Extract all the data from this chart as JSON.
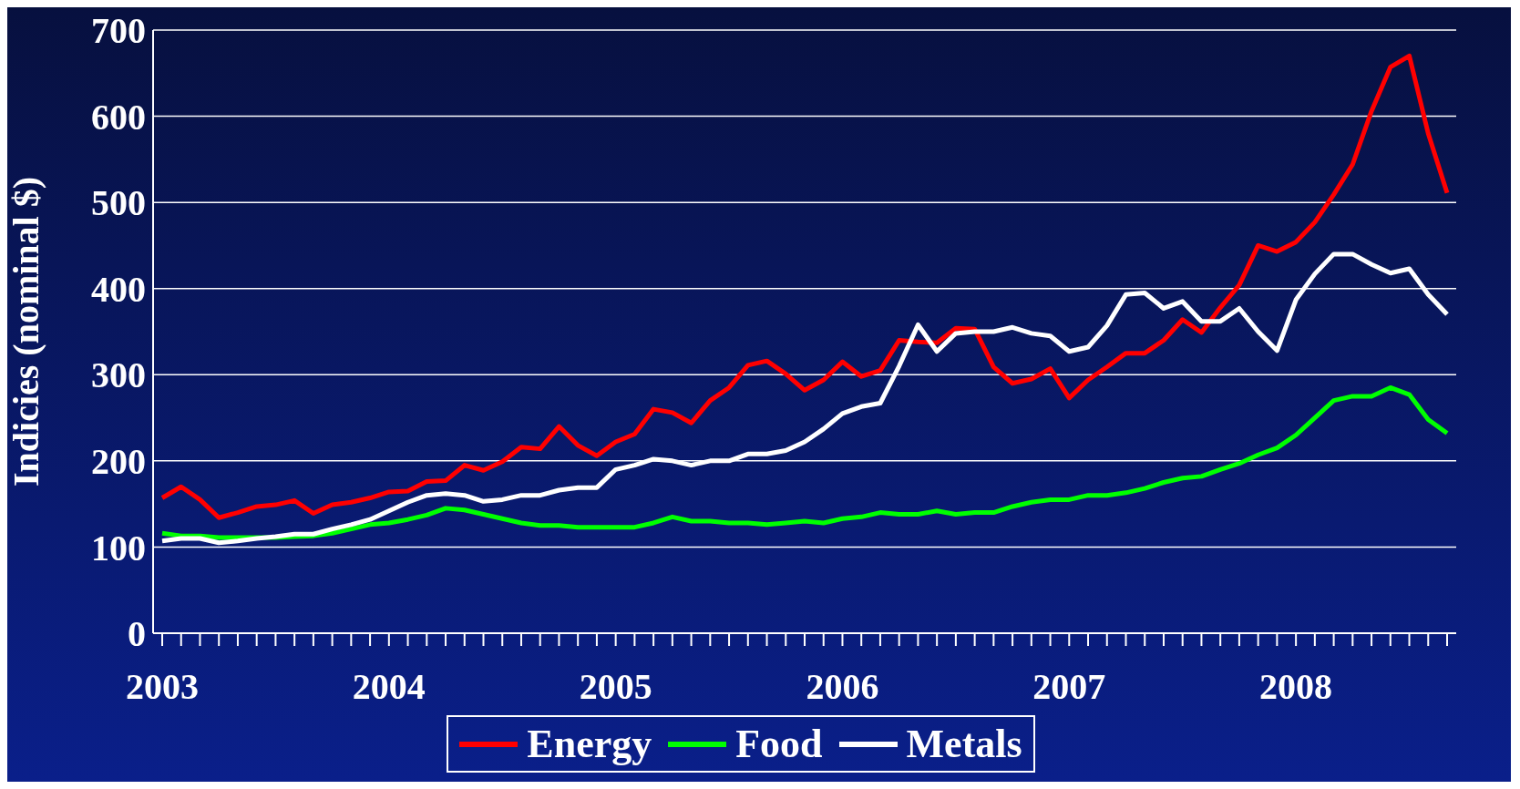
{
  "chart_data": {
    "type": "line",
    "ylabel": "Indicies (nominal $)",
    "categories": [
      "2003",
      null,
      null,
      null,
      null,
      null,
      null,
      null,
      null,
      null,
      null,
      null,
      "2004",
      null,
      null,
      null,
      null,
      null,
      null,
      null,
      null,
      null,
      null,
      null,
      "2005",
      null,
      null,
      null,
      null,
      null,
      null,
      null,
      null,
      null,
      null,
      null,
      "2006",
      null,
      null,
      null,
      null,
      null,
      null,
      null,
      null,
      null,
      null,
      null,
      "2007",
      null,
      null,
      null,
      null,
      null,
      null,
      null,
      null,
      null,
      null,
      null,
      "2008",
      null,
      null,
      null,
      null,
      null,
      null,
      null,
      null
    ],
    "series": [
      {
        "name": "Energy",
        "color": "#ff0000",
        "values": [
          157,
          170,
          155,
          134,
          140,
          147,
          149,
          154,
          139,
          149,
          152,
          157,
          164,
          165,
          176,
          177,
          195,
          189,
          199,
          216,
          214,
          240,
          218,
          206,
          222,
          231,
          260,
          256,
          244,
          270,
          285,
          311,
          316,
          301,
          282,
          294,
          315,
          298,
          305,
          340,
          338,
          337,
          354,
          353,
          309,
          290,
          295,
          307,
          273,
          294,
          309,
          325,
          325,
          340,
          364,
          349,
          378,
          404,
          450,
          443,
          454,
          477,
          509,
          544,
          606,
          657,
          670,
          580,
          511
        ]
      },
      {
        "name": "Food",
        "color": "#00ff00",
        "values": [
          116,
          113,
          113,
          111,
          111,
          111,
          111,
          112,
          113,
          116,
          121,
          126,
          128,
          132,
          137,
          145,
          143,
          138,
          133,
          128,
          125,
          125,
          123,
          123,
          123,
          123,
          128,
          135,
          130,
          130,
          128,
          128,
          126,
          128,
          130,
          128,
          133,
          135,
          140,
          138,
          138,
          142,
          138,
          140,
          140,
          147,
          152,
          155,
          155,
          160,
          160,
          163,
          168,
          175,
          180,
          182,
          190,
          197,
          207,
          215,
          230,
          250,
          270,
          275,
          275,
          285,
          277,
          248,
          232
        ]
      },
      {
        "name": "Metals",
        "color": "#ffffff",
        "values": [
          107,
          110,
          110,
          105,
          107,
          110,
          112,
          115,
          115,
          121,
          126,
          132,
          142,
          152,
          160,
          162,
          160,
          153,
          155,
          160,
          160,
          166,
          169,
          169,
          190,
          195,
          202,
          200,
          195,
          200,
          200,
          208,
          208,
          212,
          222,
          237,
          255,
          263,
          267,
          310,
          358,
          327,
          348,
          350,
          350,
          355,
          348,
          345,
          327,
          332,
          357,
          393,
          395,
          377,
          385,
          362,
          362,
          377,
          350,
          328,
          387,
          417,
          440,
          440,
          428,
          418,
          423,
          393,
          370
        ]
      }
    ],
    "ylim": [
      0,
      700
    ],
    "yticks": [
      0,
      100,
      200,
      300,
      400,
      500,
      600,
      700
    ],
    "grid": "y",
    "legend": "bottom",
    "marker": "none",
    "line_style": "solid"
  }
}
